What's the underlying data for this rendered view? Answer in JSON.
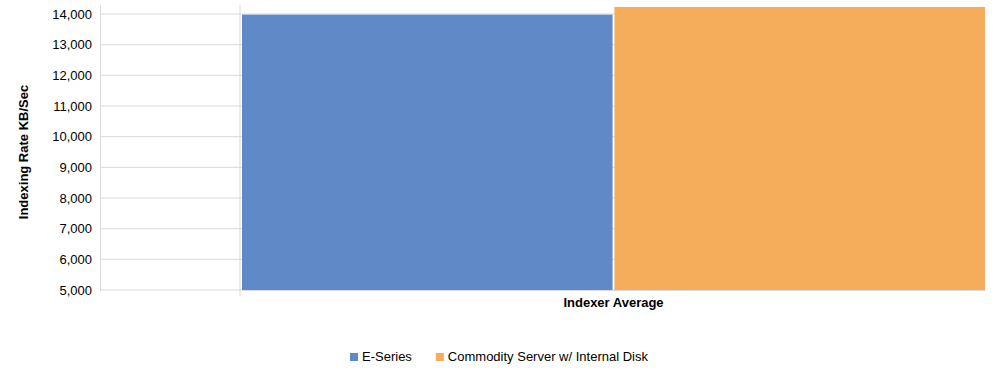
{
  "chart_data": {
    "type": "bar",
    "y_label": "Indexing Rate KB/Sec",
    "categories": [
      "Indexer Average"
    ],
    "series": [
      {
        "name": "E-Series",
        "color": "#5f8ac7",
        "values": [
          13980
        ]
      },
      {
        "name": "Commodity Server w/ Internal Disk",
        "color": "#f5ad5c",
        "values": [
          14230
        ]
      }
    ],
    "ylim": [
      5000,
      14300
    ],
    "yticks": [
      {
        "value": 5000,
        "label": "5,000"
      },
      {
        "value": 6000,
        "label": "6,000"
      },
      {
        "value": 7000,
        "label": "7,000"
      },
      {
        "value": 8000,
        "label": "8,000"
      },
      {
        "value": 9000,
        "label": "9,000"
      },
      {
        "value": 10000,
        "label": "10,000"
      },
      {
        "value": 11000,
        "label": "11,000"
      },
      {
        "value": 12000,
        "label": "12,000"
      },
      {
        "value": 13000,
        "label": "13,000"
      },
      {
        "value": 14000,
        "label": "14,000"
      }
    ],
    "grid": true,
    "legend": "bottom"
  }
}
